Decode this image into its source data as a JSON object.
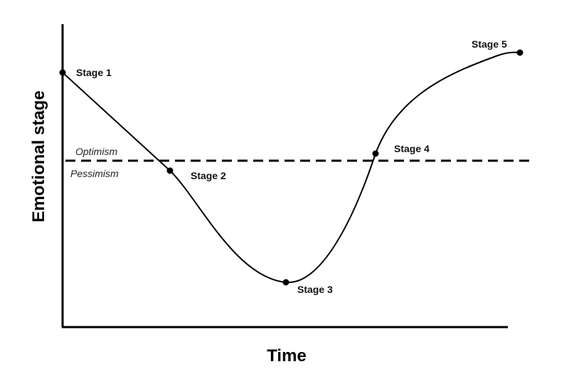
{
  "axes": {
    "x_title": "Time",
    "y_title": "Emotional stage"
  },
  "zones": {
    "above": "Optimism",
    "below": "Pessimism"
  },
  "stages": [
    {
      "label": "Stage 1"
    },
    {
      "label": "Stage 2"
    },
    {
      "label": "Stage 3"
    },
    {
      "label": "Stage 4"
    },
    {
      "label": "Stage 5"
    }
  ],
  "colors": {
    "line": "#000000",
    "background": "#ffffff"
  }
}
